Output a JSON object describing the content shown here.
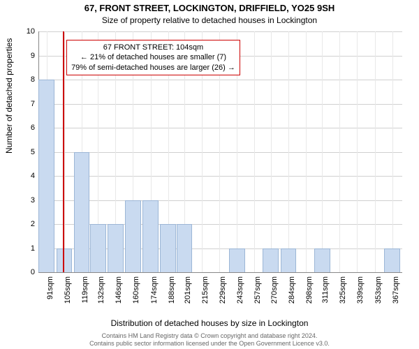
{
  "title_line1": "67, FRONT STREET, LOCKINGTON, DRIFFIELD, YO25 9SH",
  "title_line2": "Size of property relative to detached houses in Lockington",
  "ylabel": "Number of detached properties",
  "xlabel": "Distribution of detached houses by size in Lockington",
  "chart": {
    "type": "bar",
    "ylim": [
      0,
      10
    ],
    "ytick_step": 1,
    "bar_color": "#c9daf0",
    "bar_border_color": "#9cb6d6",
    "grid_color": "#d0d0d0",
    "background_color": "#ffffff",
    "marker_color": "#cc0000",
    "marker_position": 104,
    "categories": [
      "91sqm",
      "105sqm",
      "119sqm",
      "132sqm",
      "146sqm",
      "160sqm",
      "174sqm",
      "188sqm",
      "201sqm",
      "215sqm",
      "229sqm",
      "243sqm",
      "257sqm",
      "270sqm",
      "284sqm",
      "298sqm",
      "311sqm",
      "325sqm",
      "339sqm",
      "353sqm",
      "367sqm"
    ],
    "cat_numeric": [
      91,
      105,
      119,
      132,
      146,
      160,
      174,
      188,
      201,
      215,
      229,
      243,
      257,
      270,
      284,
      298,
      311,
      325,
      339,
      353,
      367
    ],
    "values": [
      8,
      1,
      5,
      2,
      2,
      3,
      3,
      2,
      2,
      0,
      0,
      1,
      0,
      1,
      1,
      0,
      1,
      0,
      0,
      0,
      1
    ],
    "xrange": [
      85,
      375
    ]
  },
  "annotation": {
    "line1": "67 FRONT STREET: 104sqm",
    "line2": "← 21% of detached houses are smaller (7)",
    "line3": "79% of semi-detached houses are larger (26) →"
  },
  "footer_line1": "Contains HM Land Registry data © Crown copyright and database right 2024.",
  "footer_line2": "Contains public sector information licensed under the Open Government Licence v3.0."
}
